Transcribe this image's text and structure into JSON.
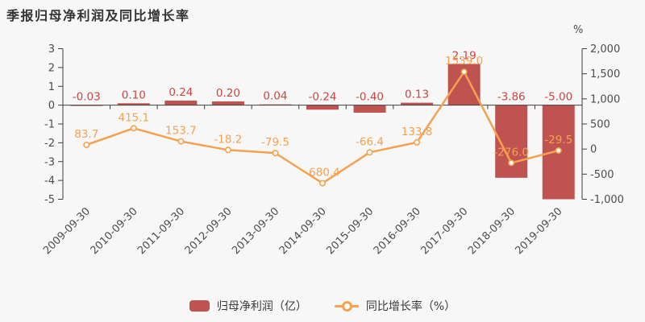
{
  "title": "季报归母净利润及同比增长率",
  "colors": {
    "background": "#f7f7f8",
    "bar": "#c0534f",
    "bar_label": "#cb4641",
    "line": "#f5a14f",
    "marker_fill": "#ffffff",
    "axis": "#3f3f3f",
    "tick_text": "#4d4d4d",
    "title_text": "#333333",
    "legend_text": "#3a3a3a"
  },
  "chart_data": {
    "type": "bar+line combo, dual y-axis",
    "title": "季报归母净利润及同比增长率",
    "categories": [
      "2009-09-30",
      "2010-09-30",
      "2011-09-30",
      "2012-09-30",
      "2013-09-30",
      "2014-09-30",
      "2015-09-30",
      "2016-09-30",
      "2017-09-30",
      "2018-09-30",
      "2019-09-30"
    ],
    "series": [
      {
        "name": "归母净利润（亿）",
        "type": "bar",
        "axis": "left",
        "values": [
          -0.03,
          0.1,
          0.24,
          0.2,
          0.04,
          -0.24,
          -0.4,
          0.13,
          2.19,
          -3.86,
          -5.0
        ],
        "labels": [
          "-0.03",
          "0.10",
          "0.24",
          "0.20",
          "0.04",
          "-0.24",
          "-0.40",
          "0.13",
          "2.19",
          "-3.86",
          "-5.00"
        ]
      },
      {
        "name": "同比增长率（%）",
        "type": "line",
        "axis": "right",
        "values": [
          83.7,
          415.1,
          153.7,
          -18.2,
          -79.5,
          -680.4,
          -66.4,
          133.8,
          1539.0,
          -276.0,
          -29.5
        ],
        "labels": [
          "83.7",
          "415.1",
          "153.7",
          "-18.2",
          "-79.5",
          "-680.4",
          "-66.4",
          "133.8",
          "1539.0",
          "-276.0",
          "-29.5"
        ]
      }
    ],
    "left_axis": {
      "min": -5,
      "max": 3,
      "tick_values": [
        3,
        2,
        1,
        0,
        -1,
        -2,
        -3,
        -4,
        -5
      ],
      "tick_labels": [
        "3",
        "2",
        "1",
        "0",
        "-1",
        "-2",
        "-3",
        "-4",
        "-5"
      ]
    },
    "right_axis": {
      "min": -1000,
      "max": 2000,
      "unit": "%",
      "tick_values": [
        2000,
        1500,
        1000,
        500,
        0,
        -500,
        -1000
      ],
      "tick_labels": [
        "2,000",
        "1,500",
        "1,000",
        "500",
        "0",
        "-500",
        "-1,000"
      ]
    },
    "grid": false,
    "legend_position": "bottom",
    "legend": [
      {
        "label": "归母净利润（亿）",
        "marker": "bar-swatch"
      },
      {
        "label": "同比增长率（%）",
        "marker": "line-marker"
      }
    ]
  }
}
